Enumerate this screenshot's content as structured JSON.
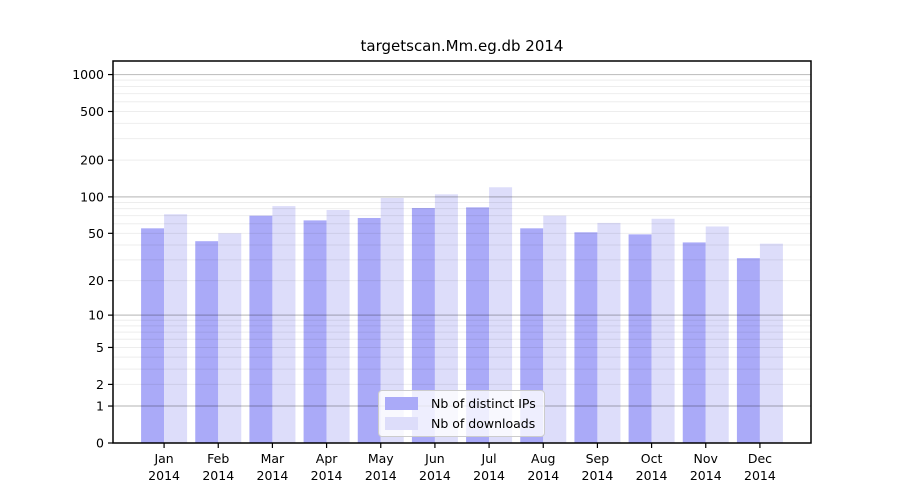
{
  "chart_data": {
    "type": "bar",
    "title": "targetscan.Mm.eg.db 2014",
    "year": "2014",
    "categories": [
      "Jan",
      "Feb",
      "Mar",
      "Apr",
      "May",
      "Jun",
      "Jul",
      "Aug",
      "Sep",
      "Oct",
      "Nov",
      "Dec"
    ],
    "series": [
      {
        "name": "Nb of distinct IPs",
        "color": "#aaaaf8",
        "values": [
          55,
          43,
          70,
          64,
          67,
          81,
          82,
          55,
          51,
          49,
          42,
          31
        ]
      },
      {
        "name": "Nb of downloads",
        "color": "#ddddfa",
        "values": [
          72,
          50,
          84,
          78,
          98,
          105,
          120,
          70,
          61,
          66,
          57,
          41
        ]
      }
    ],
    "y_scale": "log1p",
    "ylim": [
      0,
      1290
    ],
    "y_ticks": [
      0,
      1,
      2,
      5,
      10,
      20,
      50,
      100,
      200,
      500,
      1000
    ],
    "grid_major": [
      1,
      10,
      100,
      1000
    ],
    "grid_minor": [
      2,
      3,
      4,
      5,
      6,
      7,
      8,
      9,
      20,
      30,
      40,
      50,
      60,
      70,
      80,
      90,
      200,
      300,
      400,
      500,
      600,
      700,
      800,
      900
    ],
    "grid_minor_color": "rgba(0,0,0,0.07)",
    "grid_major_color": "rgba(0,0,0,0.24)",
    "axis_color": "#000000",
    "legend_position": "bottom-center",
    "background_color": "#ffffff"
  }
}
